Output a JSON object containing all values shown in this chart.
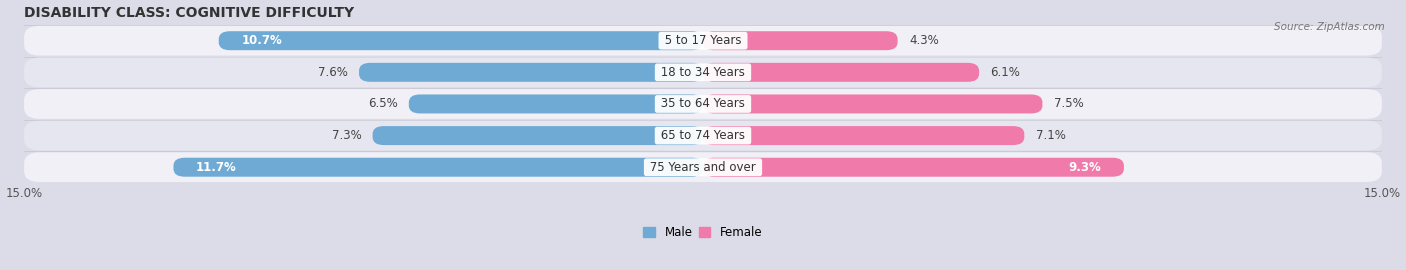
{
  "title": "DISABILITY CLASS: COGNITIVE DIFFICULTY",
  "source": "Source: ZipAtlas.com",
  "categories": [
    "5 to 17 Years",
    "18 to 34 Years",
    "35 to 64 Years",
    "65 to 74 Years",
    "75 Years and over"
  ],
  "male_values": [
    10.7,
    7.6,
    6.5,
    7.3,
    11.7
  ],
  "female_values": [
    4.3,
    6.1,
    7.5,
    7.1,
    9.3
  ],
  "male_color": "#6faad4",
  "female_color": "#f07aaa",
  "axis_max": 15.0,
  "fig_bg": "#dcdce8",
  "row_bg": "#ededf4",
  "row_bg_alt": "#e4e4ec",
  "title_fontsize": 10,
  "label_fontsize": 8.5,
  "tick_fontsize": 8.5,
  "legend_fontsize": 8.5,
  "inside_label_threshold": 9.0
}
